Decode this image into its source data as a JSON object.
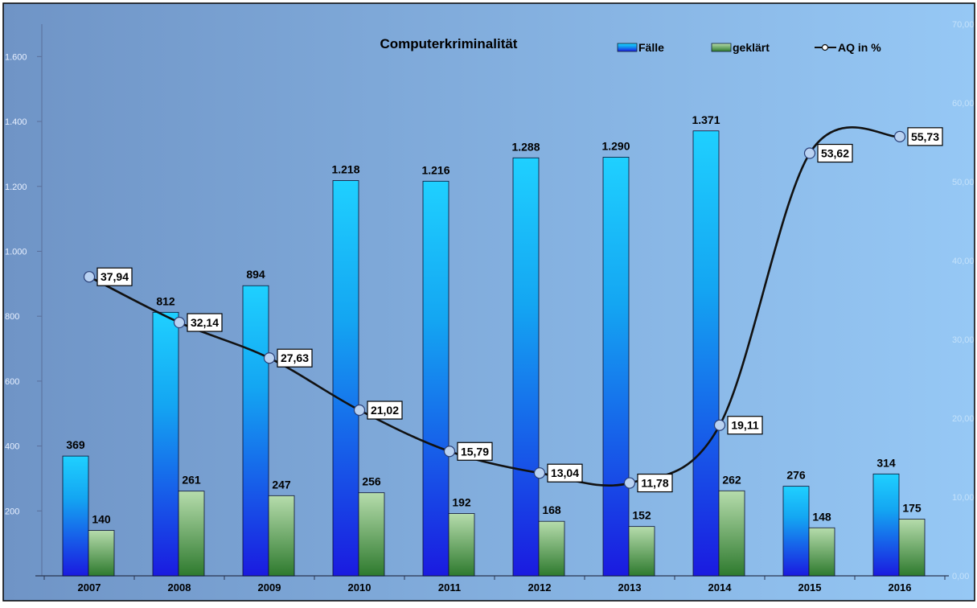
{
  "chart_data": {
    "type": "bar",
    "title": "Computerkriminalität",
    "categories": [
      "2007",
      "2008",
      "2009",
      "2010",
      "2011",
      "2012",
      "2013",
      "2014",
      "2015",
      "2016"
    ],
    "series": [
      {
        "name": "Fälle",
        "type": "bar",
        "axis": "left",
        "values": [
          369,
          812,
          894,
          1218,
          1216,
          1288,
          1290,
          1371,
          276,
          314
        ],
        "labels": [
          "369",
          "812",
          "894",
          "1.218",
          "1.216",
          "1.288",
          "1.290",
          "1.371",
          "276",
          "314"
        ]
      },
      {
        "name": "geklärt",
        "type": "bar",
        "axis": "left",
        "values": [
          140,
          261,
          247,
          256,
          192,
          168,
          152,
          262,
          148,
          175
        ],
        "labels": [
          "140",
          "261",
          "247",
          "256",
          "192",
          "168",
          "152",
          "262",
          "148",
          "175"
        ]
      },
      {
        "name": "AQ in %",
        "type": "line",
        "axis": "right",
        "values": [
          37.94,
          32.14,
          27.63,
          21.02,
          15.79,
          13.04,
          11.78,
          19.11,
          53.62,
          55.73
        ],
        "labels": [
          "37,94",
          "32,14",
          "27,63",
          "21,02",
          "15,79",
          "13,04",
          "11,78",
          "19,11",
          "53,62",
          "55,73"
        ]
      }
    ],
    "y_left": {
      "min": 0,
      "max": 1700,
      "ticks": [
        200,
        400,
        600,
        800,
        1000,
        1200,
        1400,
        1600
      ],
      "tick_labels": [
        "200",
        "400",
        "600",
        "800",
        "1.000",
        "1.200",
        "1.400",
        "1.600"
      ]
    },
    "y_right": {
      "min": 0,
      "max": 70,
      "ticks": [
        0,
        10,
        20,
        30,
        40,
        50,
        60,
        70
      ],
      "tick_labels": [
        "0,00",
        "10,00",
        "20,00",
        "30,00",
        "40,00",
        "50,00",
        "60,00",
        "70,00"
      ]
    },
    "legend_position": "top-right",
    "grid": false,
    "colors": {
      "background_left": "#6f94c6",
      "background_right": "#96c8f5",
      "bar_faelle_top": "#1fd0ff",
      "bar_faelle_bottom": "#1a1ae0",
      "bar_geklaert_top": "#b6dcac",
      "bar_geklaert_bottom": "#2e7a2e",
      "line": "#111111",
      "marker_fill": "#b9d2f2",
      "marker_stroke": "#2a3f77"
    }
  }
}
